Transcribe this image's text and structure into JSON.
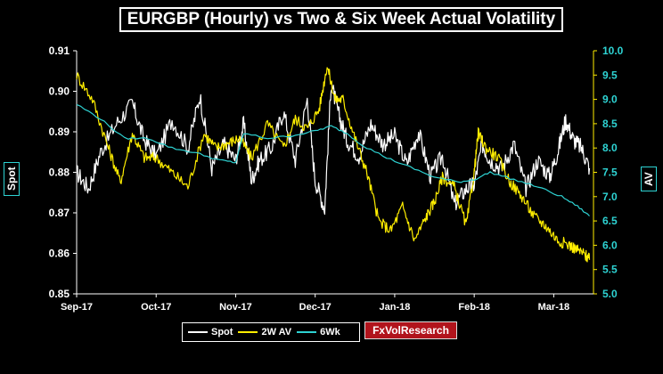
{
  "chart_data": {
    "type": "line",
    "title": "EURGBP (Hourly) vs Two & Six Week Actual Volatility",
    "xlabel": "",
    "ylabel_left": "Spot",
    "ylabel_right": "AV",
    "x_tick_labels": [
      "Sep-17",
      "Oct-17",
      "Nov-17",
      "Dec-17",
      "Jan-18",
      "Feb-18",
      "Mar-18"
    ],
    "y_left": {
      "ylim": [
        0.85,
        0.91
      ],
      "ticks": [
        "0.85",
        "0.86",
        "0.87",
        "0.88",
        "0.89",
        "0.90",
        "0.91"
      ]
    },
    "y_right": {
      "ylim": [
        5.0,
        10.0
      ],
      "ticks": [
        "5.0",
        "5.5",
        "6.0",
        "6.5",
        "7.0",
        "7.5",
        "8.0",
        "8.5",
        "9.0",
        "9.5",
        "10.0"
      ]
    },
    "grid": false,
    "legend_placement": "bottom",
    "series": [
      {
        "name": "Spot",
        "axis": "left",
        "color": "#ffffff",
        "x": [
          0,
          0.15,
          0.3,
          0.5,
          0.7,
          0.85,
          1.0,
          1.2,
          1.4,
          1.55,
          1.7,
          1.85,
          2.0,
          2.1,
          2.2,
          2.3,
          2.45,
          2.6,
          2.75,
          2.9,
          3.0,
          3.12,
          3.2,
          3.3,
          3.4,
          3.55,
          3.7,
          3.85,
          4.0,
          4.15,
          4.3,
          4.45,
          4.6,
          4.75,
          4.9,
          5.0,
          5.1,
          5.2,
          5.35,
          5.5,
          5.65,
          5.8,
          5.95,
          6.05,
          6.15,
          6.25,
          6.35,
          6.45
        ],
        "y": [
          0.88,
          0.876,
          0.885,
          0.892,
          0.897,
          0.888,
          0.884,
          0.893,
          0.886,
          0.899,
          0.881,
          0.887,
          0.883,
          0.892,
          0.878,
          0.883,
          0.886,
          0.895,
          0.883,
          0.898,
          0.878,
          0.871,
          0.902,
          0.894,
          0.888,
          0.884,
          0.892,
          0.887,
          0.889,
          0.882,
          0.89,
          0.879,
          0.884,
          0.872,
          0.876,
          0.877,
          0.887,
          0.883,
          0.881,
          0.887,
          0.876,
          0.883,
          0.879,
          0.885,
          0.893,
          0.888,
          0.886,
          0.881
        ]
      },
      {
        "name": "2W AV",
        "axis": "right",
        "color": "#ffee00",
        "x": [
          0,
          0.2,
          0.4,
          0.55,
          0.7,
          0.85,
          1.0,
          1.2,
          1.4,
          1.6,
          1.75,
          1.9,
          2.05,
          2.2,
          2.4,
          2.6,
          2.75,
          2.9,
          3.05,
          3.15,
          3.25,
          3.35,
          3.5,
          3.65,
          3.8,
          3.95,
          4.1,
          4.25,
          4.4,
          4.5,
          4.6,
          4.75,
          4.9,
          5.0,
          5.05,
          5.15,
          5.3,
          5.45,
          5.6,
          5.75,
          5.9,
          6.05,
          6.2,
          6.3,
          6.4,
          6.45
        ],
        "y": [
          9.5,
          9.0,
          8.0,
          7.3,
          8.3,
          7.8,
          7.8,
          7.5,
          7.2,
          8.3,
          8.0,
          8.1,
          8.2,
          7.8,
          8.5,
          8.0,
          8.6,
          8.4,
          8.8,
          9.7,
          9.0,
          9.0,
          8.2,
          7.5,
          6.5,
          6.3,
          6.8,
          6.1,
          6.6,
          6.9,
          7.4,
          7.2,
          6.4,
          7.5,
          8.3,
          8.0,
          7.8,
          7.3,
          7.0,
          6.6,
          6.4,
          6.1,
          6.0,
          5.9,
          5.8,
          5.7
        ]
      },
      {
        "name": "6Wk",
        "axis": "right",
        "color": "#2ed3d3",
        "x": [
          0,
          0.3,
          0.6,
          0.9,
          1.2,
          1.5,
          1.8,
          2.0,
          2.1,
          2.4,
          2.7,
          3.0,
          3.2,
          3.4,
          3.6,
          3.9,
          4.2,
          4.5,
          4.8,
          5.0,
          5.2,
          5.5,
          5.8,
          6.1,
          6.3,
          6.45
        ],
        "y": [
          8.9,
          8.6,
          8.2,
          8.2,
          8.0,
          7.9,
          7.75,
          7.7,
          8.3,
          8.2,
          8.25,
          8.35,
          8.45,
          8.3,
          8.05,
          7.8,
          7.6,
          7.4,
          7.3,
          7.35,
          7.5,
          7.35,
          7.2,
          7.0,
          6.8,
          6.6
        ]
      }
    ]
  },
  "legend": [
    {
      "label": "Spot",
      "color": "#ffffff"
    },
    {
      "label": "2W AV",
      "color": "#ffee00"
    },
    {
      "label": "6Wk",
      "color": "#2ed3d3"
    }
  ],
  "brand": "FxVolResearch"
}
